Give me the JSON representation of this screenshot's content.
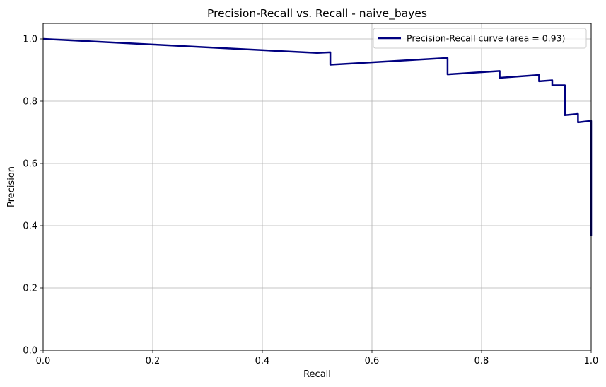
{
  "chart_data": {
    "type": "line",
    "title": "Precision-Recall vs. Recall - naive_bayes",
    "xlabel": "Recall",
    "ylabel": "Precision",
    "xlim": [
      0,
      1
    ],
    "ylim": [
      0,
      1.05
    ],
    "xticks": [
      "0.0",
      "0.2",
      "0.4",
      "0.6",
      "0.8",
      "1.0"
    ],
    "yticks": [
      "0.0",
      "0.2",
      "0.4",
      "0.6",
      "0.8",
      "1.0"
    ],
    "grid": true,
    "legend_position": "top-right",
    "series": [
      {
        "name": "Precision-Recall curve (area = 0.93)",
        "color": "#000080",
        "x": [
          0.0,
          0.5,
          0.524,
          0.524,
          0.738,
          0.738,
          0.833,
          0.833,
          0.905,
          0.905,
          0.929,
          0.929,
          0.952,
          0.952,
          0.976,
          0.976,
          1.0,
          1.0
        ],
        "y": [
          1.0,
          0.955,
          0.957,
          0.917,
          0.939,
          0.886,
          0.897,
          0.875,
          0.884,
          0.864,
          0.867,
          0.851,
          0.851,
          0.755,
          0.759,
          0.732,
          0.737,
          0.368
        ]
      }
    ]
  }
}
